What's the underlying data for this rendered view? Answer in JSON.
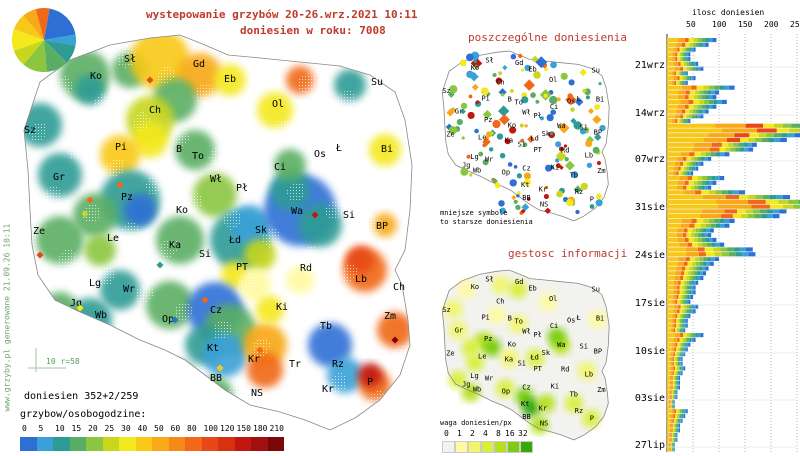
{
  "header": {
    "title": "wystepowanie grzybów 20-26.wrz.2021 10:11",
    "subtitle": "doniesien w roku: 7008"
  },
  "panels": {
    "single_reports": {
      "title": "poszczególne doniesienia",
      "note_line1": "mniejsze symbole",
      "note_line2": "to starsze doniesienia"
    },
    "info_density": {
      "title": "gestosc informacji",
      "weight_label": "waga doniesien/px",
      "weight_ticks": [
        "0",
        "1",
        "2",
        "4",
        "8",
        "16",
        "32"
      ],
      "weight_colors": [
        "#f2f2ee",
        "#fffaa0",
        "#f2f56a",
        "#d9ef3c",
        "#b4e01e",
        "#7ccd10",
        "#36a808"
      ]
    }
  },
  "main_map": {
    "scale_label": "10 r=58",
    "watermark": "www.grzyby.pl generowane 21.09.26 10:11",
    "reports_label": "doniesien 352+2/259",
    "legend_title": "grzybow/osobogodzine:",
    "legend_ticks": [
      "0",
      "5",
      "10",
      "15",
      "20",
      "25",
      "30",
      "40",
      "50",
      "60",
      "80",
      "100",
      "120",
      "150",
      "180",
      "210"
    ],
    "legend_colors": [
      "#2e6fd6",
      "#3aa0d8",
      "#2e9b94",
      "#5aae64",
      "#8ac640",
      "#c8d61e",
      "#f4e81e",
      "#f8c818",
      "#f8a818",
      "#f48a18",
      "#f06818",
      "#e84818",
      "#d83010",
      "#c01810",
      "#a01010",
      "#7a0808"
    ],
    "regions": [
      "Sł",
      "Gd",
      "Ko",
      "Eb",
      "Su",
      "Ol",
      "Ch",
      "Sz",
      "Pi",
      "B",
      "To",
      "Ł",
      "Bi",
      "Gr",
      "Wł",
      "Os",
      "Ci",
      "Pł",
      "Pz",
      "Ze",
      "Ko",
      "Wa",
      "Si",
      "Le",
      "Ka",
      "Łd",
      "Sk",
      "BP",
      "Si",
      "PT",
      "Rd",
      "Lg",
      "Wr",
      "Lb",
      "Ch",
      "Jg",
      "Wb",
      "Op",
      "Cz",
      "Ki",
      "Tb",
      "Zm",
      "Kt",
      "Kr",
      "Tr",
      "Rz",
      "BB",
      "NS",
      "Kr",
      "P"
    ]
  },
  "mini_map_regions": [
    "Sł",
    "Gd",
    "Ko",
    "Ol",
    "Su",
    "Ch",
    "Eb",
    "Sz",
    "Pi",
    "B",
    "To",
    "Bi",
    "Gr",
    "Wł",
    "Pł",
    "Pz",
    "Ci",
    "Os",
    "Ł",
    "Ze",
    "Ko",
    "Wa",
    "Si",
    "Le",
    "Ka",
    "Sk",
    "BP",
    "Łd",
    "PT",
    "Rd",
    "Lg",
    "Si",
    "Lb",
    "Wr",
    "Jg",
    "Wb",
    "Op",
    "Cz",
    "Ki",
    "Zm",
    "Tb",
    "Kt",
    "Kr",
    "Rz",
    "BB",
    "NS",
    "P"
  ],
  "timeline": {
    "axis_title": "ilosc doniesien",
    "x_ticks": [
      "50",
      "100",
      "150",
      "200",
      "250"
    ],
    "date_labels": [
      "21wrz",
      "14wrz",
      "07wrz",
      "31sie",
      "24sie",
      "17sie",
      "10sie",
      "03sie",
      "27lip"
    ]
  },
  "chart_data": {
    "type": "bar",
    "title": "ilosc doniesien",
    "orientation": "horizontal",
    "stacked": true,
    "xlim": [
      0,
      250
    ],
    "x_ticks": [
      50,
      100,
      150,
      200,
      250
    ],
    "date_labels": [
      "21wrz",
      "14wrz",
      "07wrz",
      "31sie",
      "24sie",
      "17sie",
      "10sie",
      "03sie",
      "27lip"
    ],
    "daily_totals": [
      95,
      80,
      55,
      45,
      45,
      60,
      70,
      40,
      55,
      40,
      130,
      100,
      95,
      115,
      95,
      80,
      70,
      45,
      210,
      240,
      180,
      160,
      120,
      115,
      120,
      85,
      70,
      60,
      50,
      110,
      95,
      85,
      150,
      175,
      240,
      250,
      170,
      160,
      130,
      120,
      90,
      85,
      95,
      110,
      165,
      170,
      100,
      90,
      80,
      75,
      70,
      60,
      55,
      55,
      50,
      45,
      60,
      55,
      45,
      40,
      40,
      35,
      70,
      55,
      45,
      40,
      35,
      30,
      30,
      35,
      30,
      25,
      25,
      25,
      20,
      20,
      15,
      15,
      40,
      35,
      30,
      25,
      25,
      20,
      20,
      15,
      15
    ]
  }
}
